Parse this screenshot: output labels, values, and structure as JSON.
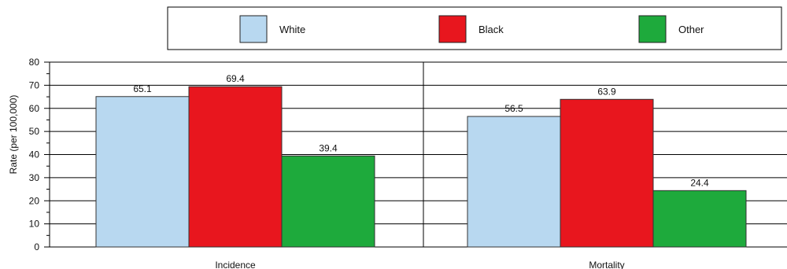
{
  "chart_data": {
    "type": "bar",
    "categories": [
      "Incidence",
      "Mortality"
    ],
    "series": [
      {
        "name": "White",
        "values": [
          65.1,
          56.5
        ],
        "color": "#b8d8f0"
      },
      {
        "name": "Black",
        "values": [
          69.4,
          63.9
        ],
        "color": "#e8161e"
      },
      {
        "name": "Other",
        "values": [
          39.4,
          24.4
        ],
        "color": "#1eaa3c"
      }
    ],
    "data_labels": [
      [
        "65.1",
        "56.5"
      ],
      [
        "69.4",
        "63.9"
      ],
      [
        "39.4",
        "24.4"
      ]
    ],
    "ylabel": "Rate (per 100,000)",
    "xlabel": "",
    "ylim": [
      0,
      80
    ],
    "yticks": [
      "0",
      "10",
      "20",
      "30",
      "40",
      "50",
      "60",
      "70",
      "80"
    ],
    "grid": true,
    "legend_position": "top"
  }
}
